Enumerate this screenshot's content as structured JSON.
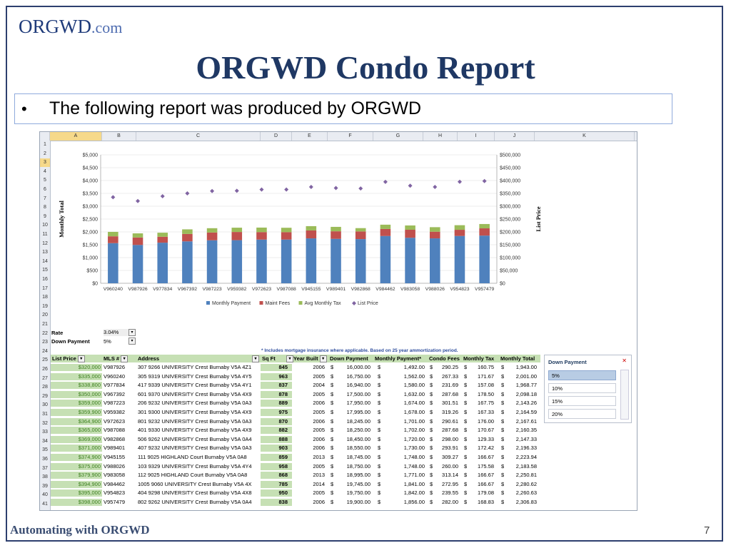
{
  "slide": {
    "logo": {
      "main": "ORGWD",
      "suffix": ".com"
    },
    "title": "ORGWD Condo Report",
    "bullet": "The following report was produced by ORGWD",
    "footer": "Automating with ORGWD",
    "page_number": "7"
  },
  "sheet": {
    "columns": [
      "A",
      "B",
      "C",
      "D",
      "E",
      "F",
      "G",
      "H",
      "I",
      "J",
      "K"
    ],
    "selected_cell": "A3",
    "rate_label": "Rate",
    "rate_value": "3.04%",
    "down_label": "Down Payment",
    "down_value": "5%",
    "note": "* Includes mortgage insurance where applicable.  Based on 25 year ammortization period.",
    "headers": [
      "List Price",
      "MLS #",
      "Address",
      "Sq Ft",
      "Year Built",
      "Down Payment",
      "Monthly Payment*",
      "Condo Fees",
      "Monthly Tax",
      "Monthly Total"
    ],
    "rows": [
      {
        "n": "27",
        "lp": "$320,000",
        "mls": "V987926",
        "addr": "307 9266 UNIVERSITY Crest Burnaby V5A 4Z1",
        "sq": "845",
        "yb": "2006",
        "dp": "16,000.00",
        "mp": "1,492.00",
        "cf": "290.25",
        "mt": "160.75",
        "tot": "1,943.00"
      },
      {
        "n": "28",
        "lp": "$335,000",
        "mls": "V960240",
        "addr": "305 9319 UNIVERSITY Crest Burnaby V5A 4Y5",
        "sq": "963",
        "yb": "2005",
        "dp": "16,750.00",
        "mp": "1,562.00",
        "cf": "267.33",
        "mt": "171.67",
        "tot": "2,001.00"
      },
      {
        "n": "29",
        "lp": "$338,800",
        "mls": "V977834",
        "addr": "417 9339 UNIVERSITY Crest Burnaby V5A 4Y1",
        "sq": "837",
        "yb": "2004",
        "dp": "16,940.00",
        "mp": "1,580.00",
        "cf": "231.69",
        "mt": "157.08",
        "tot": "1,968.77"
      },
      {
        "n": "30",
        "lp": "$350,000",
        "mls": "V967392",
        "addr": "601 9370 UNIVERSITY Crest Burnaby V5A 4X9",
        "sq": "878",
        "yb": "2005",
        "dp": "17,500.00",
        "mp": "1,632.00",
        "cf": "287.68",
        "mt": "178.50",
        "tot": "2,098.18"
      },
      {
        "n": "31",
        "lp": "$359,000",
        "mls": "V987223",
        "addr": "206 9232 UNIVERSITY Crest Burnaby V5A 0A3",
        "sq": "889",
        "yb": "2006",
        "dp": "17,950.00",
        "mp": "1,674.00",
        "cf": "301.51",
        "mt": "167.75",
        "tot": "2,143.26"
      },
      {
        "n": "32",
        "lp": "$359,900",
        "mls": "V959382",
        "addr": "301 9300 UNIVERSITY Crest Burnaby V5A 4X9",
        "sq": "975",
        "yb": "2005",
        "dp": "17,995.00",
        "mp": "1,678.00",
        "cf": "319.26",
        "mt": "167.33",
        "tot": "2,164.59"
      },
      {
        "n": "33",
        "lp": "$364,900",
        "mls": "V972623",
        "addr": "801 9232 UNIVERSITY Crest Burnaby V5A 0A3",
        "sq": "870",
        "yb": "2006",
        "dp": "18,245.00",
        "mp": "1,701.00",
        "cf": "290.61",
        "mt": "176.00",
        "tot": "2,167.61"
      },
      {
        "n": "34",
        "lp": "$365,000",
        "mls": "V987088",
        "addr": "401 9330 UNIVERSITY Crest Burnaby V5A 4X9",
        "sq": "882",
        "yb": "2005",
        "dp": "18,250.00",
        "mp": "1,702.00",
        "cf": "287.68",
        "mt": "170.67",
        "tot": "2,160.35"
      },
      {
        "n": "35",
        "lp": "$369,000",
        "mls": "V982868",
        "addr": "506 9262 UNIVERSITY Crest Burnaby V5A 0A4",
        "sq": "888",
        "yb": "2006",
        "dp": "18,450.00",
        "mp": "1,720.00",
        "cf": "298.00",
        "mt": "129.33",
        "tot": "2,147.33"
      },
      {
        "n": "36",
        "lp": "$371,000",
        "mls": "V989401",
        "addr": "407 9232 UNIVERSITY Crest Burnaby V5A 0A3",
        "sq": "903",
        "yb": "2006",
        "dp": "18,550.00",
        "mp": "1,730.00",
        "cf": "293.91",
        "mt": "172.42",
        "tot": "2,196.33"
      },
      {
        "n": "37",
        "lp": "$374,900",
        "mls": "V945155",
        "addr": "111 9025 HIGHLAND Court Burnaby V5A 0A8",
        "sq": "859",
        "yb": "2013",
        "dp": "18,745.00",
        "mp": "1,748.00",
        "cf": "309.27",
        "mt": "166.67",
        "tot": "2,223.94"
      },
      {
        "n": "38",
        "lp": "$375,000",
        "mls": "V988026",
        "addr": "103 9329 UNIVERSITY Crest Burnaby V5A 4Y4",
        "sq": "958",
        "yb": "2005",
        "dp": "18,750.00",
        "mp": "1,748.00",
        "cf": "260.00",
        "mt": "175.58",
        "tot": "2,183.58"
      },
      {
        "n": "39",
        "lp": "$379,900",
        "mls": "V983058",
        "addr": "112 9025 HIGHLAND Court Burnaby V5A 0A8",
        "sq": "868",
        "yb": "2013",
        "dp": "18,995.00",
        "mp": "1,771.00",
        "cf": "313.14",
        "mt": "166.67",
        "tot": "2,250.81"
      },
      {
        "n": "40",
        "lp": "$394,900",
        "mls": "V984462",
        "addr": "1005 9060 UNIVERSITY Crest Burnaby V5A 4X",
        "sq": "785",
        "yb": "2014",
        "dp": "19,745.00",
        "mp": "1,841.00",
        "cf": "272.95",
        "mt": "166.67",
        "tot": "2,280.62"
      },
      {
        "n": "41",
        "lp": "$395,000",
        "mls": "V954823",
        "addr": "404 9298 UNIVERSITY Crest Burnaby V5A 4X8",
        "sq": "950",
        "yb": "2005",
        "dp": "19,750.00",
        "mp": "1,842.00",
        "cf": "239.55",
        "mt": "179.08",
        "tot": "2,260.63"
      },
      {
        "n": "42",
        "lp": "$398,000",
        "mls": "V957479",
        "addr": "802 9262 UNIVERSITY Crest Burnaby V5A 0A4",
        "sq": "838",
        "yb": "2006",
        "dp": "19,900.00",
        "mp": "1,856.00",
        "cf": "282.00",
        "mt": "168.83",
        "tot": "2,306.83"
      }
    ],
    "slicer": {
      "title": "Down Payment",
      "items": [
        "5%",
        "10%",
        "15%",
        "20%"
      ],
      "selected": "5%"
    }
  },
  "chart_data": {
    "type": "bar",
    "stacked": true,
    "categories": [
      "V960240",
      "V987926",
      "V977834",
      "V967392",
      "V987223",
      "V959382",
      "V972623",
      "V987088",
      "V945155",
      "V989401",
      "V982868",
      "V984462",
      "V983058",
      "V988026",
      "V954823",
      "V957479"
    ],
    "series": [
      {
        "name": "Monthly Payment",
        "color": "#4f81bd",
        "values": [
          1562,
          1492,
          1580,
          1632,
          1674,
          1678,
          1701,
          1702,
          1748,
          1730,
          1720,
          1841,
          1771,
          1748,
          1842,
          1856
        ]
      },
      {
        "name": "Maint Fees",
        "color": "#c0504d",
        "values": [
          267,
          290,
          232,
          288,
          302,
          319,
          291,
          288,
          309,
          294,
          298,
          273,
          313,
          260,
          240,
          282
        ]
      },
      {
        "name": "Avg Monthly Tax",
        "color": "#9bbb59",
        "values": [
          172,
          161,
          157,
          179,
          168,
          167,
          176,
          171,
          167,
          172,
          129,
          167,
          167,
          176,
          179,
          169
        ]
      },
      {
        "name": "List Price",
        "color": "#8064a2",
        "axis": "right",
        "marker": "diamond",
        "values": [
          335000,
          320000,
          338800,
          350000,
          359000,
          359900,
          364900,
          365000,
          374900,
          371000,
          369000,
          394900,
          379900,
          375000,
          395000,
          398000
        ]
      }
    ],
    "ylabel": "Monthly Total",
    "y2label": "List Price",
    "ylim": [
      0,
      5000
    ],
    "y2lim": [
      0,
      500000
    ],
    "yticks": [
      "$0",
      "$500",
      "$1,000",
      "$1,500",
      "$2,000",
      "$2,500",
      "$3,000",
      "$3,500",
      "$4,000",
      "$4,500",
      "$5,000"
    ],
    "y2ticks": [
      "$0",
      "$50,000",
      "$100,000",
      "$150,000",
      "$200,000",
      "$250,000",
      "$300,000",
      "$350,000",
      "$400,000",
      "$450,000",
      "$500,000"
    ],
    "legend": "bottom"
  }
}
